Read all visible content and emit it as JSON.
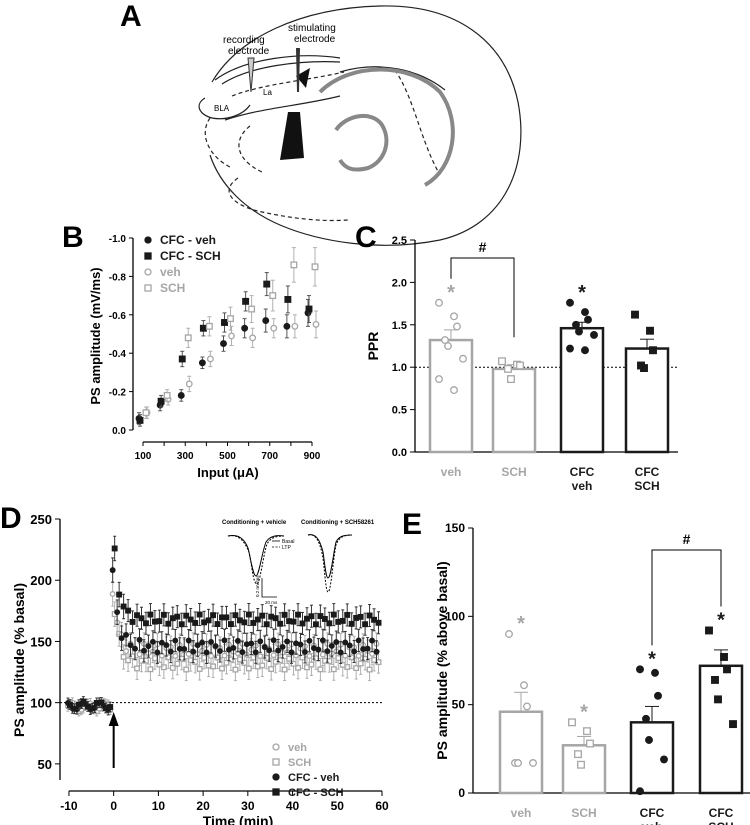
{
  "panels": {
    "a": {
      "letter": "A",
      "labels": {
        "recording": [
          "recording",
          "electrode"
        ],
        "stimulating": [
          "stimulating",
          "electrode"
        ],
        "la": "La",
        "bla": "BLA"
      }
    },
    "b": {
      "letter": "B"
    },
    "c": {
      "letter": "C"
    },
    "d": {
      "letter": "D"
    },
    "e": {
      "letter": "E"
    }
  },
  "colors": {
    "gray": "#a6a6a6",
    "black": "#1a1a1a",
    "err_gray": "#b0b0b0"
  },
  "chart_data": [
    {
      "id": "B",
      "type": "scatter",
      "xlabel": "Input (μA)",
      "ylabel": "PS amplitude (mV/ms)",
      "xticks": [
        100,
        300,
        500,
        700,
        900
      ],
      "yticks": [
        "-1.0",
        "-0.8",
        "-0.6",
        "-0.4",
        "-0.2",
        "0.0"
      ],
      "xlim": [
        100,
        900
      ],
      "ylim": [
        0.0,
        -1.0
      ],
      "x": [
        100,
        200,
        300,
        400,
        500,
        600,
        700,
        800,
        900
      ],
      "legend_position": "top-left",
      "series": [
        {
          "name": "CFC - veh",
          "marker": "filled-circle",
          "color": "#1a1a1a",
          "values": [
            -0.06,
            -0.13,
            -0.18,
            -0.35,
            -0.45,
            -0.53,
            -0.57,
            -0.54,
            -0.61
          ],
          "errors": [
            0.03,
            0.03,
            0.03,
            0.03,
            0.04,
            0.05,
            0.06,
            0.06,
            0.07
          ]
        },
        {
          "name": "CFC - SCH",
          "marker": "filled-square",
          "color": "#1a1a1a",
          "values": [
            -0.05,
            -0.15,
            -0.37,
            -0.53,
            -0.56,
            -0.67,
            -0.76,
            -0.68,
            -0.63
          ],
          "errors": [
            0.03,
            0.03,
            0.04,
            0.04,
            0.05,
            0.05,
            0.06,
            0.07,
            0.07
          ]
        },
        {
          "name": "veh",
          "marker": "open-circle",
          "color": "#a6a6a6",
          "values": [
            -0.09,
            -0.16,
            -0.24,
            -0.37,
            -0.49,
            -0.48,
            -0.53,
            -0.54,
            -0.55
          ],
          "errors": [
            0.03,
            0.03,
            0.04,
            0.04,
            0.05,
            0.05,
            0.05,
            0.06,
            0.07
          ]
        },
        {
          "name": "SCH",
          "marker": "open-square",
          "color": "#a6a6a6",
          "values": [
            -0.09,
            -0.18,
            -0.48,
            -0.54,
            -0.58,
            -0.63,
            -0.7,
            -0.86,
            -0.85
          ],
          "errors": [
            0.03,
            0.03,
            0.05,
            0.05,
            0.06,
            0.07,
            0.08,
            0.09,
            0.1
          ]
        }
      ]
    },
    {
      "id": "C",
      "type": "bar",
      "ylabel": "PPR",
      "yticks": [
        "0.0",
        "0.5",
        "1.0",
        "1.5",
        "2.0",
        "2.5"
      ],
      "ylim": [
        0.0,
        2.5
      ],
      "reference_line": 1.0,
      "categories": [
        [
          "veh"
        ],
        [
          "SCH"
        ],
        [
          "CFC",
          "veh"
        ],
        [
          "CFC",
          "SCH"
        ]
      ],
      "values": [
        1.32,
        0.98,
        1.46,
        1.22
      ],
      "errors": [
        0.12,
        0.05,
        0.07,
        0.11
      ],
      "bar_colors": [
        "#a6a6a6",
        "#a6a6a6",
        "#1a1a1a",
        "#1a1a1a"
      ],
      "markers": [
        "open-circle",
        "open-square",
        "filled-circle",
        "filled-square"
      ],
      "points": [
        [
          1.76,
          1.6,
          1.48,
          1.32,
          1.25,
          1.1,
          0.86,
          0.73
        ],
        [
          1.07,
          1.03,
          1.02,
          0.98,
          0.86
        ],
        [
          1.76,
          1.65,
          1.56,
          1.5,
          1.42,
          1.38,
          1.22,
          1.2
        ],
        [
          1.62,
          1.43,
          1.2,
          1.02,
          0.99
        ]
      ],
      "stars": [
        "*",
        "",
        "*",
        ""
      ],
      "bracket": {
        "from": 0,
        "to": 1,
        "label": "#"
      }
    },
    {
      "id": "D",
      "type": "scatter",
      "xlabel": "Time (min)",
      "ylabel": "PS amplitude  (% basal)",
      "xticks": [
        -10,
        0,
        10,
        20,
        30,
        40,
        50,
        60
      ],
      "yticks": [
        50,
        100,
        150,
        200,
        250
      ],
      "xlim": [
        -12,
        60
      ],
      "ylim": [
        45,
        250
      ],
      "reference_line": 100,
      "arrow_at": 0,
      "legend_position": "bottom-right",
      "inset": {
        "labels": [
          "Conditioning + vehicle",
          "Conditioning + SCH58261"
        ],
        "legend": [
          "Basal",
          "LTP"
        ],
        "scale": [
          "0.2 mV/ms",
          "20 ms"
        ]
      },
      "series": [
        {
          "name": "veh",
          "marker": "open-circle",
          "color": "#a6a6a6",
          "baseline": 97,
          "peak": 193,
          "plateau": 143,
          "amplitude": 5
        },
        {
          "name": "SCH",
          "marker": "open-square",
          "color": "#a6a6a6",
          "baseline": 96,
          "peak": 176,
          "plateau": 132,
          "amplitude": 5
        },
        {
          "name": "CFC - veh",
          "marker": "filled-circle",
          "color": "#1a1a1a",
          "baseline": 97,
          "peak": 206,
          "plateau": 146,
          "amplitude": 5
        },
        {
          "name": "CFC - SCH",
          "marker": "filled-square",
          "color": "#1a1a1a",
          "baseline": 98,
          "peak": 222,
          "plateau": 168,
          "amplitude": 4
        }
      ]
    },
    {
      "id": "E",
      "type": "bar",
      "ylabel": "PS amplitude (% above basal)",
      "yticks": [
        "0",
        "50",
        "100",
        "150"
      ],
      "ylim": [
        0,
        150
      ],
      "categories": [
        [
          "veh"
        ],
        [
          "SCH"
        ],
        [
          "CFC",
          "veh"
        ],
        [
          "CFC",
          "SCH"
        ]
      ],
      "values": [
        46,
        27,
        40,
        72
      ],
      "errors": [
        11,
        5,
        9,
        9
      ],
      "bar_colors": [
        "#a6a6a6",
        "#a6a6a6",
        "#1a1a1a",
        "#1a1a1a"
      ],
      "markers": [
        "open-circle",
        "open-square",
        "filled-circle",
        "filled-square"
      ],
      "points": [
        [
          90,
          61,
          49,
          17,
          17,
          17
        ],
        [
          40,
          35,
          28,
          22,
          16
        ],
        [
          70,
          68,
          55,
          42,
          30,
          19,
          1
        ],
        [
          92,
          77,
          70,
          64,
          53,
          39
        ]
      ],
      "stars": [
        "*",
        "*",
        "*",
        "*"
      ],
      "bracket": {
        "from": 2,
        "to": 3,
        "label": "#"
      }
    }
  ]
}
